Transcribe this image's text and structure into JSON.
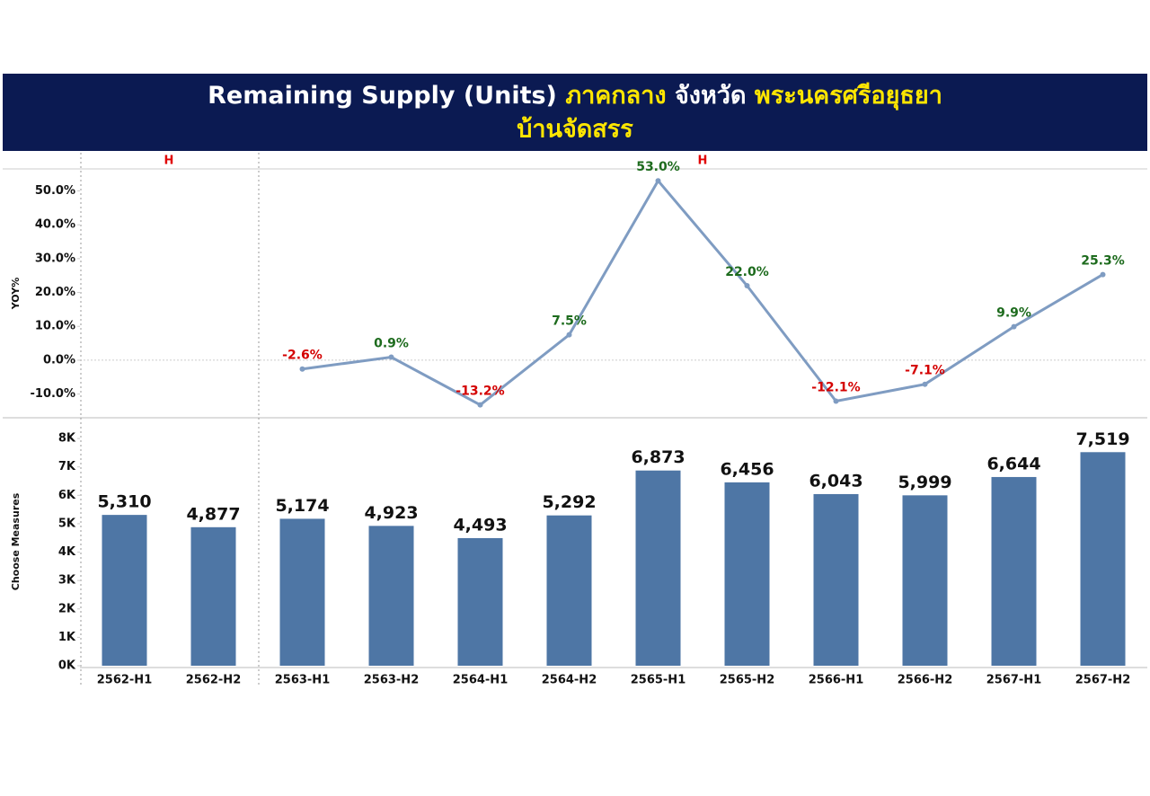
{
  "header": {
    "title": [
      "Remaining Supply (Units)",
      "ภาคกลาง",
      "จังหวัด",
      "พระนครศรีอยุธยา"
    ],
    "title_colors": [
      "#ffffff",
      "#ffe600",
      "#ffffff",
      "#ffe600"
    ],
    "subtitle": "บ้านจัดสรร",
    "subtitle_color": "#ffe600",
    "background": "#0b1a52"
  },
  "chart_data": [
    {
      "type": "line",
      "y_label": "YOY%",
      "annotations": [
        "H",
        "H"
      ],
      "categories": [
        "2562-H1",
        "2562-H2",
        "2563-H1",
        "2563-H2",
        "2564-H1",
        "2564-H2",
        "2565-H1",
        "2565-H2",
        "2566-H1",
        "2566-H2",
        "2567-H1",
        "2567-H2"
      ],
      "values": [
        null,
        null,
        -2.6,
        0.9,
        -13.2,
        7.5,
        53.0,
        22.0,
        -12.1,
        -7.1,
        9.9,
        25.3
      ],
      "value_labels": [
        null,
        null,
        "-2.6%",
        "0.9%",
        "-13.2%",
        "7.5%",
        "53.0%",
        "22.0%",
        "-12.1%",
        "-7.1%",
        "9.9%",
        "25.3%"
      ],
      "color": "#7f9cc2",
      "positive_label_color": "#1d6b1d",
      "negative_label_color": "#d40000",
      "ylim": [
        -17,
        56.5
      ],
      "yticks": [
        {
          "value": -10,
          "label": "-10.0%"
        },
        {
          "value": 0,
          "label": "0.0%"
        },
        {
          "value": 10,
          "label": "10.0%"
        },
        {
          "value": 20,
          "label": "20.0%"
        },
        {
          "value": 30,
          "label": "30.0%"
        },
        {
          "value": 40,
          "label": "40.0%"
        },
        {
          "value": 50,
          "label": "50.0%"
        }
      ],
      "zero_line": true
    },
    {
      "type": "bar",
      "y_label": "Choose Measures",
      "categories": [
        "2562-H1",
        "2562-H2",
        "2563-H1",
        "2563-H2",
        "2564-H1",
        "2564-H2",
        "2565-H1",
        "2565-H2",
        "2566-H1",
        "2566-H2",
        "2567-H1",
        "2567-H2"
      ],
      "values": [
        5310,
        4877,
        5174,
        4923,
        4493,
        5292,
        6873,
        6456,
        6043,
        5999,
        6644,
        7519
      ],
      "value_labels": [
        "5,310",
        "4,877",
        "5,174",
        "4,923",
        "4,493",
        "5,292",
        "6,873",
        "6,456",
        "6,043",
        "5,999",
        "6,644",
        "7,519"
      ],
      "color": "#4e76a5",
      "ylim": [
        0,
        8730
      ],
      "yticks": [
        {
          "value": 0,
          "label": "0K"
        },
        {
          "value": 1000,
          "label": "1K"
        },
        {
          "value": 2000,
          "label": "2K"
        },
        {
          "value": 3000,
          "label": "3K"
        },
        {
          "value": 4000,
          "label": "4K"
        },
        {
          "value": 5000,
          "label": "5K"
        },
        {
          "value": 6000,
          "label": "6K"
        },
        {
          "value": 7000,
          "label": "7K"
        },
        {
          "value": 8000,
          "label": "8K"
        }
      ]
    }
  ]
}
